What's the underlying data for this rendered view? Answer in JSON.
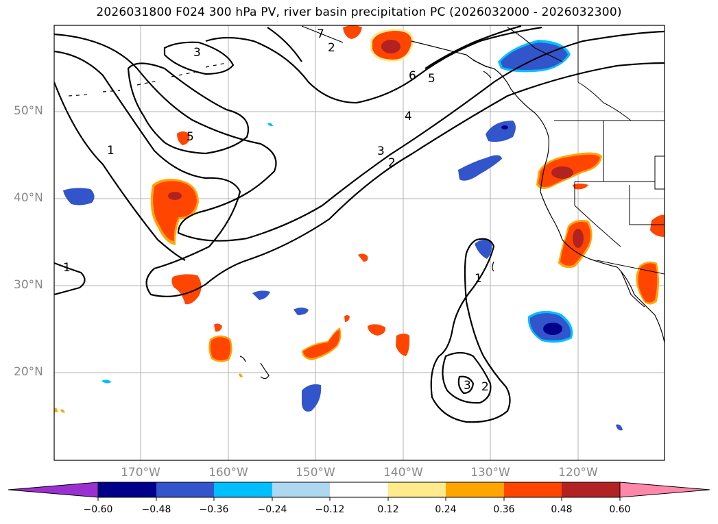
{
  "title": "2026031800 F024 300 hPa PV, river basin precipitation PC (2026032000 - 2026032300)",
  "lat_labels": [
    "50°N",
    "40°N",
    "30°N",
    "20°N"
  ],
  "lon_labels": [
    "170°W",
    "160°W",
    "150°W",
    "140°W",
    "130°W",
    "120°W"
  ],
  "contour_labels": [
    {
      "text": "1",
      "key": "l1a"
    },
    {
      "text": "1",
      "key": "l1b"
    },
    {
      "text": "1",
      "key": "l1c"
    },
    {
      "text": "2",
      "key": "l2a"
    },
    {
      "text": "2",
      "key": "l2b"
    },
    {
      "text": "2",
      "key": "l2c"
    },
    {
      "text": "3",
      "key": "l3a"
    },
    {
      "text": "3",
      "key": "l3b"
    },
    {
      "text": "3",
      "key": "l3c"
    },
    {
      "text": "4",
      "key": "l4"
    },
    {
      "text": "5",
      "key": "l5a"
    },
    {
      "text": "5",
      "key": "l5b"
    },
    {
      "text": "6",
      "key": "l6"
    },
    {
      "text": "7",
      "key": "l7"
    }
  ],
  "colorbar": {
    "ticks": [
      "−0.60",
      "−0.48",
      "−0.36",
      "−0.24",
      "−0.12",
      "0.12",
      "0.24",
      "0.36",
      "0.48",
      "0.60"
    ],
    "colors": [
      "#9b30d0",
      "#00008b",
      "#3355cc",
      "#00bfff",
      "#add8f0",
      "#ffffff",
      "#ffea8c",
      "#ffa500",
      "#ff4500",
      "#b22222",
      "#ff88aa"
    ]
  }
}
